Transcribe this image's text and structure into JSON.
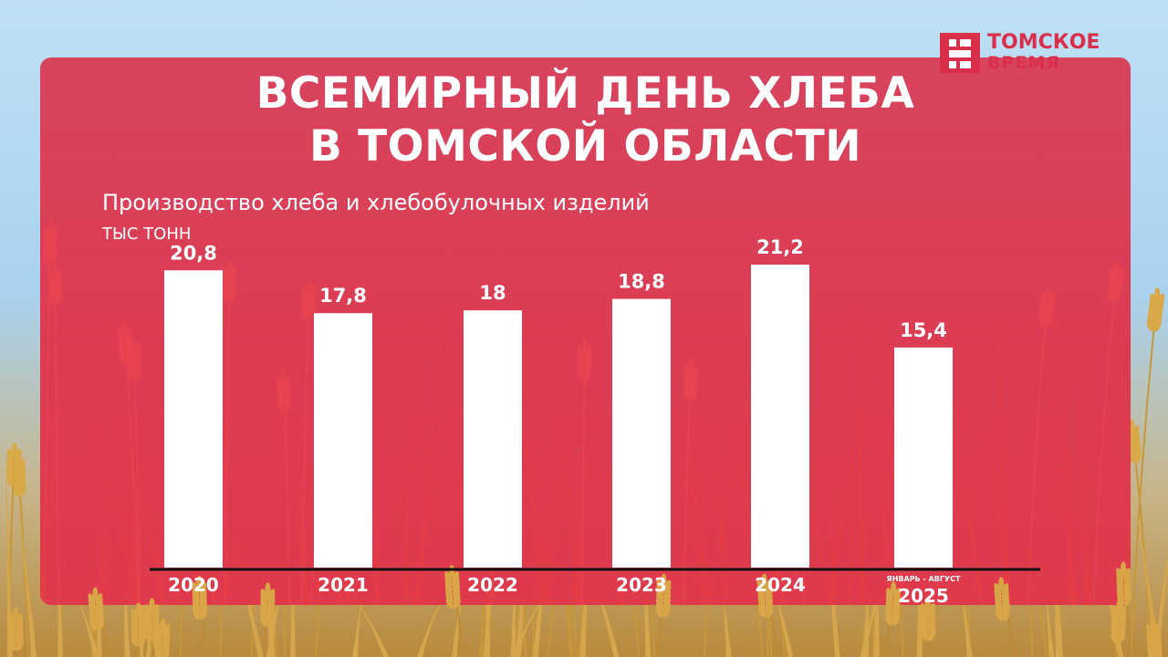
{
  "brand": {
    "line1": "ТОМСКОЕ",
    "line2": "ВРЕМЯ"
  },
  "title_line1": "ВСЕМИРНЫЙ ДЕНЬ ХЛЕБА",
  "title_line2": "В ТОМСКОЙ ОБЛАСТИ",
  "chart_data": {
    "type": "bar",
    "title": "Производство хлеба и хлебобулочных изделий",
    "ylabel": "ТЫС ТОНН",
    "xlabel": "",
    "categories": [
      "2020",
      "2021",
      "2022",
      "2023",
      "2024",
      "2025"
    ],
    "category_notes": [
      "",
      "",
      "",
      "",
      "",
      "ЯНВАРЬ - АВГУСТ"
    ],
    "values": [
      20.8,
      17.8,
      18,
      18.8,
      21.2,
      15.4
    ],
    "value_labels": [
      "20,8",
      "17,8",
      "18",
      "18,8",
      "21,2",
      "15,4"
    ],
    "ylim": [
      0,
      21.2
    ],
    "grid": false,
    "legend": "none",
    "colors": {
      "bar": "#ffffff",
      "panel": "#dc3c52",
      "axis": "#111111",
      "brand": "#d92f4a"
    }
  }
}
